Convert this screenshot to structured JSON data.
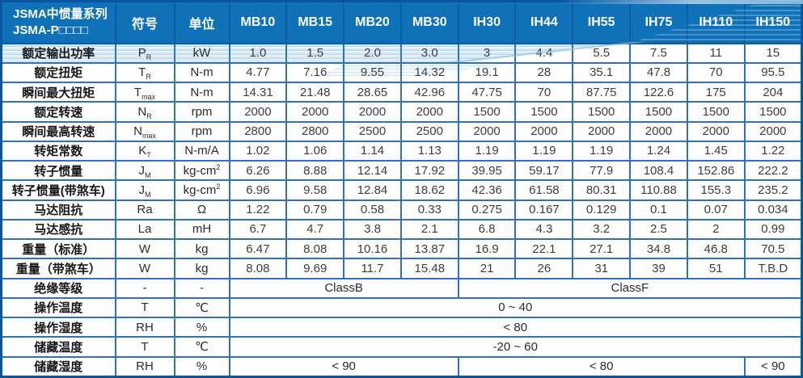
{
  "header": {
    "title_line1": "JSMA中惯量系列",
    "title_line2": "JSMA-P□□□□",
    "symbol_col": "符号",
    "unit_col": "单位",
    "models": [
      "MB10",
      "MB15",
      "MB20",
      "MB30",
      "IH30",
      "IH44",
      "IH55",
      "IH75",
      "IH110",
      "IH150"
    ]
  },
  "rows": [
    {
      "label": "额定输出功率",
      "sym": "P",
      "sub": "R",
      "unit": "kW",
      "values": [
        "1.0",
        "1.5",
        "2.0",
        "3.0",
        "3",
        "4.4",
        "5.5",
        "7.5",
        "11",
        "15"
      ]
    },
    {
      "label": "额定扭矩",
      "sym": "T",
      "sub": "R",
      "unit": "N-m",
      "values": [
        "4.77",
        "7.16",
        "9.55",
        "14.32",
        "19.1",
        "28",
        "35.1",
        "47.8",
        "70",
        "95.5"
      ]
    },
    {
      "label": "瞬间最大扭矩",
      "sym": "T",
      "sub": "max",
      "unit": "N-m",
      "values": [
        "14.31",
        "21.48",
        "28.65",
        "42.96",
        "47.75",
        "70",
        "87.75",
        "122.6",
        "175",
        "204"
      ]
    },
    {
      "label": "额定转速",
      "sym": "N",
      "sub": "R",
      "unit": "rpm",
      "values": [
        "2000",
        "2000",
        "2000",
        "2000",
        "1500",
        "1500",
        "1500",
        "1500",
        "1500",
        "1500"
      ]
    },
    {
      "label": "瞬间最高转速",
      "sym": "N",
      "sub": "max",
      "unit": "rpm",
      "values": [
        "2800",
        "2800",
        "2500",
        "2500",
        "2000",
        "2000",
        "2000",
        "2000",
        "2000",
        "2000"
      ]
    },
    {
      "label": "转矩常数",
      "sym": "K",
      "sub": "T",
      "unit": "N-m/A",
      "values": [
        "1.02",
        "1.06",
        "1.14",
        "1.13",
        "1.19",
        "1.19",
        "1.19",
        "1.24",
        "1.45",
        "1.22"
      ]
    },
    {
      "label": "转子惯量",
      "sym": "J",
      "sub": "M",
      "unit": "kg-cm",
      "usup": "2",
      "values": [
        "6.26",
        "8.88",
        "12.14",
        "17.92",
        "39.95",
        "59.17",
        "77.9",
        "108.4",
        "152.86",
        "222.2"
      ]
    },
    {
      "label": "转子惯量(带煞车)",
      "sym": "J",
      "sub": "M",
      "unit": "kg-cm",
      "usup": "2",
      "values": [
        "6.96",
        "9.58",
        "12.84",
        "18.62",
        "42.36",
        "61.58",
        "80.31",
        "110.88",
        "155.3",
        "235.2"
      ]
    },
    {
      "label": "马达阻抗",
      "sym": "Ra",
      "unit": "Ω",
      "values": [
        "1.22",
        "0.79",
        "0.58",
        "0.33",
        "0.275",
        "0.167",
        "0.129",
        "0.1",
        "0.07",
        "0.034"
      ]
    },
    {
      "label": "马达感抗",
      "sym": "La",
      "unit": "mH",
      "values": [
        "6.7",
        "4.7",
        "3.8",
        "2.1",
        "6.8",
        "4.3",
        "3.2",
        "2.5",
        "2",
        "0.99"
      ]
    },
    {
      "label": "重量（标准）",
      "sym": "W",
      "unit": "kg",
      "values": [
        "6.47",
        "8.08",
        "10.16",
        "13.87",
        "16.9",
        "22.1",
        "27.1",
        "34.8",
        "46.8",
        "70.5"
      ]
    },
    {
      "label": "重量（带煞车）",
      "sym": "W",
      "unit": "kg",
      "values": [
        "8.08",
        "9.69",
        "11.7",
        "15.48",
        "21",
        "26",
        "31",
        "39",
        "51",
        "T.B.D"
      ]
    }
  ],
  "env_rows": [
    {
      "label": "绝缘等级",
      "sym": "-",
      "unit": "-",
      "spans": [
        {
          "text": "ClassB",
          "cols": 4
        },
        {
          "text": "ClassF",
          "cols": 6
        }
      ]
    },
    {
      "label": "操作温度",
      "sym": "T",
      "unit": "℃",
      "spans": [
        {
          "text": "0 ~ 40",
          "cols": 10
        }
      ]
    },
    {
      "label": "操作湿度",
      "sym": "RH",
      "unit": "%",
      "spans": [
        {
          "text": "< 80",
          "cols": 10
        }
      ]
    },
    {
      "label": "储藏温度",
      "sym": "T",
      "unit": "℃",
      "spans": [
        {
          "text": "-20 ~ 60",
          "cols": 10
        }
      ]
    },
    {
      "label": "储藏湿度",
      "sym": "RH",
      "unit": "%",
      "spans": [
        {
          "text": "< 90",
          "cols": 4
        },
        {
          "text": "< 80",
          "cols": 5
        },
        {
          "text": "< 90",
          "cols": 1
        }
      ]
    }
  ],
  "colors": {
    "header_blue": "#0f72b9",
    "header_divider": "#0c5da6",
    "grid_border": "#2e74b2",
    "outer_border": "#0a55a0",
    "wave_light_blue": "#cde4f5",
    "wave_crest_blue": "#4d9ed4",
    "header_text": "#ffffff",
    "label_text": "#161616",
    "value_text": "#3d3d3d"
  }
}
